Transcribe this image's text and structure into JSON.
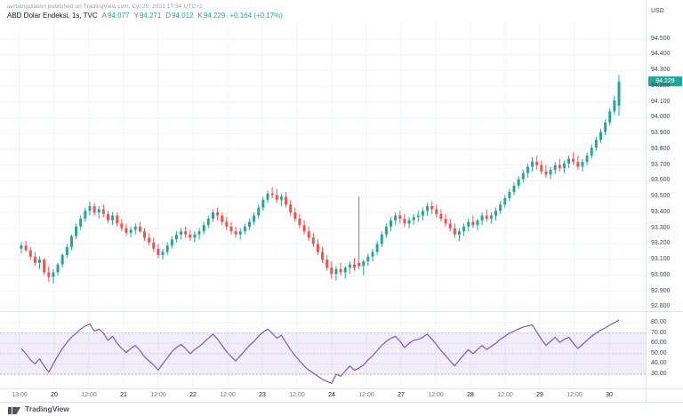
{
  "attribution": "serbangulation published on TradingView.com, Eyl 29, 2021 17:54 UTC+2",
  "legend": {
    "symbol_title": "ABD Dolar Endeksi, 1s, TVC",
    "ohlc": [
      {
        "label": "A",
        "value": "94.077"
      },
      {
        "label": "Y",
        "value": "94.271"
      },
      {
        "label": "D",
        "value": "94.012"
      },
      {
        "label": "K",
        "value": "94.229"
      }
    ],
    "change": "+0.164 (+0.17%)"
  },
  "axis": {
    "currency": "USD",
    "last_price": "94.229",
    "price_ticks": [
      "94.500",
      "94.400",
      "94.300",
      "94.200",
      "94.100",
      "94.000",
      "93.900",
      "93.800",
      "93.700",
      "93.600",
      "93.500",
      "93.400",
      "93.300",
      "93.200",
      "93.100",
      "93.000",
      "92.900",
      "92.800"
    ],
    "indicator_ticks": [
      "80.00",
      "70.00",
      "60.00",
      "50.00",
      "40.00",
      "30.00"
    ],
    "time_ticks": [
      "13:00",
      "20",
      "12:00",
      "21",
      "12:00",
      "22",
      "12:00",
      "23",
      "12:00",
      "24",
      "12:00",
      "27",
      "12:00",
      "28",
      "12:00",
      "29",
      "12:00",
      "30"
    ]
  },
  "footer": {
    "logo_text": "TradingView"
  },
  "colors": {
    "up": "#26a69a",
    "down": "#ef5350",
    "rsi_line": "#7e57c2",
    "rsi_band_fill": "rgba(126,87,194,0.10)",
    "rsi_band_border": "#9b9eb0",
    "grid": "#f0f3fa",
    "separator": "#e0e3eb",
    "axis_text": "#434651",
    "muted_text": "#787b86",
    "badge_bg": "#26a69a",
    "badge_text": "#ffffff"
  },
  "chart_data": [
    {
      "type": "candlestick",
      "title": "ABD Dolar Endeksi, 1s, TVC",
      "ylabel": "USD",
      "price_range": [
        92.78,
        94.6
      ],
      "last_bar": {
        "open": 94.077,
        "high": 94.271,
        "low": 94.012,
        "close": 94.229,
        "change": "+0.164 (+0.17%)"
      },
      "candles": [
        [
          93.17,
          93.21,
          93.14,
          93.19
        ],
        [
          93.19,
          93.22,
          93.15,
          93.16
        ],
        [
          93.16,
          93.18,
          93.1,
          93.12
        ],
        [
          93.12,
          93.15,
          93.06,
          93.08
        ],
        [
          93.08,
          93.12,
          93.04,
          93.1
        ],
        [
          93.1,
          93.11,
          93.0,
          93.02
        ],
        [
          93.02,
          93.06,
          92.96,
          92.99
        ],
        [
          92.99,
          93.04,
          92.95,
          93.02
        ],
        [
          93.02,
          93.08,
          93.0,
          93.07
        ],
        [
          93.07,
          93.14,
          93.05,
          93.13
        ],
        [
          93.13,
          93.2,
          93.11,
          93.18
        ],
        [
          93.18,
          93.26,
          93.16,
          93.25
        ],
        [
          93.25,
          93.33,
          93.23,
          93.31
        ],
        [
          93.31,
          93.38,
          93.29,
          93.36
        ],
        [
          93.36,
          93.43,
          93.34,
          93.41
        ],
        [
          93.41,
          93.47,
          93.38,
          93.44
        ],
        [
          93.44,
          93.46,
          93.38,
          93.4
        ],
        [
          93.4,
          93.44,
          93.36,
          93.42
        ],
        [
          93.42,
          93.45,
          93.37,
          93.39
        ],
        [
          93.39,
          93.41,
          93.33,
          93.35
        ],
        [
          93.35,
          93.4,
          93.32,
          93.38
        ],
        [
          93.38,
          93.4,
          93.31,
          93.33
        ],
        [
          93.33,
          93.36,
          93.28,
          93.3
        ],
        [
          93.3,
          93.33,
          93.25,
          93.27
        ],
        [
          93.27,
          93.31,
          93.24,
          93.29
        ],
        [
          93.29,
          93.33,
          93.26,
          93.31
        ],
        [
          93.31,
          93.34,
          93.27,
          93.28
        ],
        [
          93.28,
          93.3,
          93.22,
          93.24
        ],
        [
          93.24,
          93.27,
          93.19,
          93.21
        ],
        [
          93.21,
          93.24,
          93.15,
          93.17
        ],
        [
          93.17,
          93.2,
          93.11,
          93.13
        ],
        [
          93.13,
          93.17,
          93.1,
          93.15
        ],
        [
          93.15,
          93.21,
          93.13,
          93.19
        ],
        [
          93.19,
          93.25,
          93.17,
          93.23
        ],
        [
          93.23,
          93.28,
          93.21,
          93.26
        ],
        [
          93.26,
          93.3,
          93.23,
          93.28
        ],
        [
          93.28,
          93.31,
          93.24,
          93.26
        ],
        [
          93.26,
          93.29,
          93.22,
          93.24
        ],
        [
          93.24,
          93.28,
          93.21,
          93.26
        ],
        [
          93.26,
          93.3,
          93.23,
          93.28
        ],
        [
          93.28,
          93.34,
          93.26,
          93.32
        ],
        [
          93.32,
          93.38,
          93.3,
          93.36
        ],
        [
          93.36,
          93.42,
          93.34,
          93.4
        ],
        [
          93.4,
          93.43,
          93.35,
          93.38
        ],
        [
          93.38,
          93.4,
          93.32,
          93.34
        ],
        [
          93.34,
          93.37,
          93.29,
          93.31
        ],
        [
          93.31,
          93.34,
          93.26,
          93.28
        ],
        [
          93.28,
          93.31,
          93.24,
          93.26
        ],
        [
          93.26,
          93.3,
          93.23,
          93.28
        ],
        [
          93.28,
          93.33,
          93.26,
          93.31
        ],
        [
          93.31,
          93.36,
          93.29,
          93.34
        ],
        [
          93.34,
          93.4,
          93.32,
          93.38
        ],
        [
          93.38,
          93.45,
          93.36,
          93.43
        ],
        [
          93.43,
          93.5,
          93.41,
          93.48
        ],
        [
          93.48,
          93.54,
          93.46,
          93.52
        ],
        [
          93.52,
          93.56,
          93.49,
          93.51
        ],
        [
          93.51,
          93.55,
          93.46,
          93.48
        ],
        [
          93.48,
          93.52,
          93.44,
          93.5
        ],
        [
          93.5,
          93.53,
          93.43,
          93.45
        ],
        [
          93.45,
          93.48,
          93.38,
          93.4
        ],
        [
          93.4,
          93.43,
          93.34,
          93.36
        ],
        [
          93.36,
          93.39,
          93.3,
          93.32
        ],
        [
          93.32,
          93.35,
          93.26,
          93.28
        ],
        [
          93.28,
          93.31,
          93.22,
          93.24
        ],
        [
          93.24,
          93.27,
          93.18,
          93.2
        ],
        [
          93.2,
          93.23,
          93.13,
          93.15
        ],
        [
          93.15,
          93.18,
          93.08,
          93.1
        ],
        [
          93.1,
          93.13,
          93.03,
          93.05
        ],
        [
          93.05,
          93.09,
          92.98,
          93.01
        ],
        [
          93.01,
          93.06,
          92.97,
          93.04
        ],
        [
          93.04,
          93.08,
          93.0,
          93.02
        ],
        [
          93.02,
          93.06,
          92.98,
          93.05
        ],
        [
          93.05,
          93.09,
          93.01,
          93.07
        ],
        [
          93.07,
          93.11,
          93.03,
          93.05
        ],
        [
          93.08,
          93.5,
          93.04,
          93.06
        ],
        [
          93.06,
          93.1,
          93.0,
          93.09
        ],
        [
          93.09,
          93.14,
          93.06,
          93.12
        ],
        [
          93.12,
          93.17,
          93.09,
          93.15
        ],
        [
          93.15,
          93.22,
          93.13,
          93.2
        ],
        [
          93.2,
          93.28,
          93.18,
          93.26
        ],
        [
          93.26,
          93.33,
          93.24,
          93.31
        ],
        [
          93.31,
          93.37,
          93.28,
          93.35
        ],
        [
          93.35,
          93.4,
          93.32,
          93.38
        ],
        [
          93.38,
          93.41,
          93.33,
          93.36
        ],
        [
          93.36,
          93.39,
          93.31,
          93.33
        ],
        [
          93.33,
          93.37,
          93.3,
          93.35
        ],
        [
          93.35,
          93.39,
          93.32,
          93.37
        ],
        [
          93.37,
          93.41,
          93.34,
          93.38
        ],
        [
          93.38,
          93.43,
          93.35,
          93.41
        ],
        [
          93.41,
          93.46,
          93.38,
          93.44
        ],
        [
          93.44,
          93.47,
          93.39,
          93.42
        ],
        [
          93.42,
          93.45,
          93.37,
          93.39
        ],
        [
          93.39,
          93.42,
          93.34,
          93.36
        ],
        [
          93.36,
          93.39,
          93.31,
          93.33
        ],
        [
          93.33,
          93.36,
          93.28,
          93.3
        ],
        [
          93.3,
          93.33,
          93.24,
          93.26
        ],
        [
          93.26,
          93.3,
          93.22,
          93.28
        ],
        [
          93.28,
          93.33,
          93.25,
          93.31
        ],
        [
          93.31,
          93.36,
          93.28,
          93.34
        ],
        [
          93.34,
          93.38,
          93.3,
          93.32
        ],
        [
          93.32,
          93.36,
          93.29,
          93.35
        ],
        [
          93.35,
          93.4,
          93.32,
          93.38
        ],
        [
          93.38,
          93.42,
          93.34,
          93.36
        ],
        [
          93.36,
          93.4,
          93.33,
          93.38
        ],
        [
          93.38,
          93.43,
          93.35,
          93.41
        ],
        [
          93.41,
          93.47,
          93.39,
          93.45
        ],
        [
          93.45,
          93.51,
          93.43,
          93.49
        ],
        [
          93.49,
          93.55,
          93.47,
          93.53
        ],
        [
          93.53,
          93.59,
          93.51,
          93.57
        ],
        [
          93.57,
          93.63,
          93.55,
          93.61
        ],
        [
          93.61,
          93.67,
          93.59,
          93.65
        ],
        [
          93.65,
          93.71,
          93.62,
          93.69
        ],
        [
          93.69,
          93.75,
          93.66,
          93.72
        ],
        [
          93.72,
          93.76,
          93.67,
          93.7
        ],
        [
          93.7,
          93.73,
          93.64,
          93.66
        ],
        [
          93.66,
          93.7,
          93.62,
          93.64
        ],
        [
          93.64,
          93.69,
          93.61,
          93.67
        ],
        [
          93.67,
          93.72,
          93.64,
          93.7
        ],
        [
          93.7,
          93.74,
          93.66,
          93.68
        ],
        [
          93.68,
          93.73,
          93.65,
          93.71
        ],
        [
          93.71,
          93.76,
          93.68,
          93.74
        ],
        [
          93.74,
          93.78,
          93.7,
          93.72
        ],
        [
          93.72,
          93.76,
          93.67,
          93.69
        ],
        [
          93.69,
          93.74,
          93.66,
          93.72
        ],
        [
          93.72,
          93.78,
          93.7,
          93.76
        ],
        [
          93.76,
          93.83,
          93.74,
          93.81
        ],
        [
          93.81,
          93.88,
          93.79,
          93.86
        ],
        [
          93.86,
          93.93,
          93.84,
          93.91
        ],
        [
          93.91,
          93.99,
          93.89,
          93.97
        ],
        [
          93.97,
          94.06,
          93.95,
          94.04
        ],
        [
          94.04,
          94.14,
          94.02,
          94.11
        ],
        [
          94.077,
          94.271,
          94.012,
          94.229
        ]
      ]
    },
    {
      "type": "line",
      "name": "oscillator",
      "range": [
        17,
        88
      ],
      "band": [
        30,
        70
      ],
      "midline": 50,
      "values": [
        55,
        50,
        44,
        40,
        45,
        38,
        32,
        40,
        48,
        55,
        61,
        66,
        70,
        74,
        77,
        79,
        72,
        74,
        70,
        63,
        67,
        60,
        55,
        51,
        55,
        58,
        53,
        47,
        43,
        39,
        34,
        40,
        46,
        52,
        56,
        59,
        55,
        50,
        54,
        57,
        61,
        65,
        69,
        64,
        58,
        52,
        47,
        43,
        48,
        53,
        58,
        62,
        67,
        71,
        74,
        70,
        65,
        68,
        61,
        54,
        48,
        43,
        38,
        34,
        31,
        28,
        25,
        23,
        21,
        30,
        28,
        33,
        38,
        34,
        36,
        39,
        44,
        48,
        53,
        58,
        62,
        65,
        67,
        62,
        56,
        60,
        63,
        64,
        66,
        69,
        64,
        59,
        53,
        48,
        43,
        38,
        44,
        49,
        54,
        50,
        54,
        58,
        54,
        57,
        60,
        64,
        67,
        70,
        72,
        74,
        76,
        77,
        78,
        71,
        64,
        58,
        62,
        66,
        61,
        64,
        66,
        60,
        55,
        59,
        63,
        67,
        70,
        73,
        75,
        78,
        80,
        83
      ]
    }
  ]
}
